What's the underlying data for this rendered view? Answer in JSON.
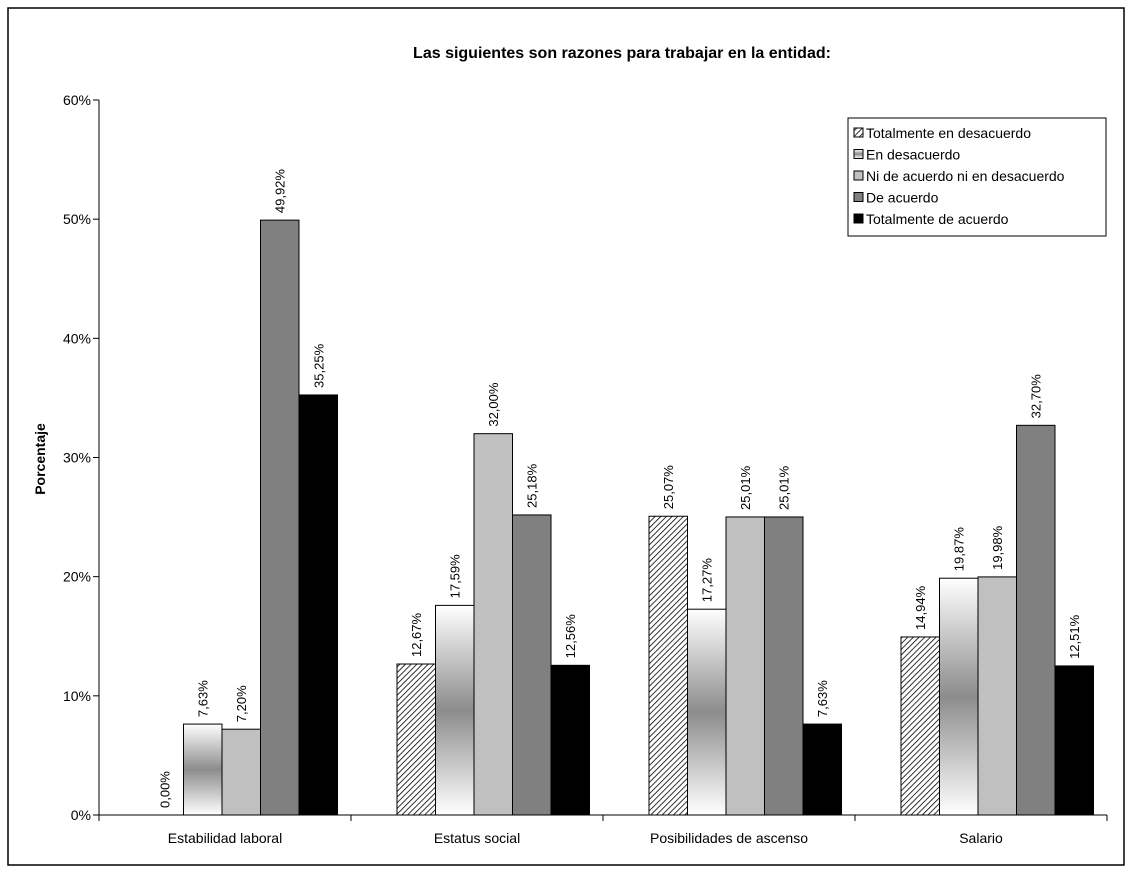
{
  "chart_data": {
    "type": "bar",
    "title": "Las siguientes son  razones  para trabajar en la entidad:",
    "xlabel": "",
    "ylabel": "Porcentaje",
    "ylim": [
      0,
      60
    ],
    "yticks": [
      "0%",
      "10%",
      "20%",
      "30%",
      "40%",
      "50%",
      "60%"
    ],
    "grid": false,
    "legend_position": "top-right",
    "categories": [
      "Estabilidad laboral",
      "Estatus social",
      "Posibilidades de ascenso",
      "Salario"
    ],
    "series": [
      {
        "name": "Totalmente en desacuerdo",
        "values": [
          0.0,
          12.67,
          25.07,
          14.94
        ],
        "labels": [
          "0,00%",
          "12,67%",
          "25,07%",
          "14,94%"
        ],
        "fill": "hatch"
      },
      {
        "name": "En desacuerdo",
        "values": [
          7.63,
          17.59,
          17.27,
          19.87
        ],
        "labels": [
          "7,63%",
          "17,59%",
          "17,27%",
          "19,87%"
        ],
        "fill": "gradient"
      },
      {
        "name": "Ni de acuerdo ni en desacuerdo",
        "values": [
          7.2,
          32.0,
          25.01,
          19.98
        ],
        "labels": [
          "7,20%",
          "32,00%",
          "25,01%",
          "19,98%"
        ],
        "fill": "#c0c0c0"
      },
      {
        "name": "De acuerdo",
        "values": [
          49.92,
          25.18,
          25.01,
          32.7
        ],
        "labels": [
          "49,92%",
          "25,18%",
          "25,01%",
          "32,70%"
        ],
        "fill": "#808080"
      },
      {
        "name": "Totalmente de acuerdo",
        "values": [
          35.25,
          12.56,
          7.63,
          12.51
        ],
        "labels": [
          "35,25%",
          "12,56%",
          "7,63%",
          "12,51%"
        ],
        "fill": "#000000"
      }
    ]
  }
}
